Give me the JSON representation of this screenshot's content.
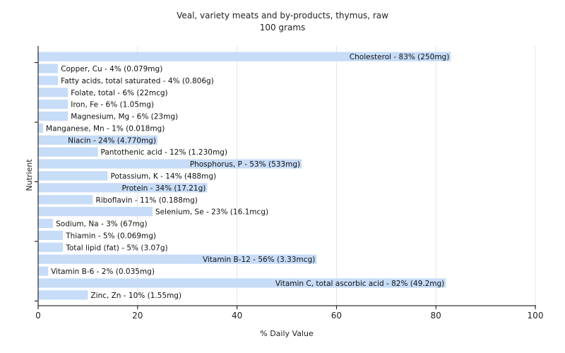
{
  "chart_data": {
    "type": "bar",
    "orientation": "horizontal",
    "title": "Veal, variety meats and by-products, thymus, raw",
    "subtitle": "100 grams",
    "xlabel": "% Daily Value",
    "ylabel": "Nutrient",
    "xlim": [
      0,
      100
    ],
    "xticks": [
      0,
      20,
      40,
      60,
      80,
      100
    ],
    "grid": true,
    "bar_color": "#c6dcf7",
    "categories": [
      "Cholesterol",
      "Copper, Cu",
      "Fatty acids, total saturated",
      "Folate, total",
      "Iron, Fe",
      "Magnesium, Mg",
      "Manganese, Mn",
      "Niacin",
      "Pantothenic acid",
      "Phosphorus, P",
      "Potassium, K",
      "Protein",
      "Riboflavin",
      "Selenium, Se",
      "Sodium, Na",
      "Thiamin",
      "Total lipid (fat)",
      "Vitamin B-12",
      "Vitamin B-6",
      "Vitamin C, total ascorbic acid",
      "Zinc, Zn"
    ],
    "values": [
      83,
      4,
      4,
      6,
      6,
      6,
      1,
      24,
      12,
      53,
      14,
      34,
      11,
      23,
      3,
      5,
      5,
      56,
      2,
      82,
      10
    ],
    "labels": [
      "Cholesterol - 83% (250mg)",
      "Copper, Cu - 4% (0.079mg)",
      "Fatty acids, total saturated - 4% (0.806g)",
      "Folate, total - 6% (22mcg)",
      "Iron, Fe - 6% (1.05mg)",
      "Magnesium, Mg - 6% (23mg)",
      "Manganese, Mn - 1% (0.018mg)",
      "Niacin - 24% (4.770mg)",
      "Pantothenic acid - 12% (1.230mg)",
      "Phosphorus, P - 53% (533mg)",
      "Potassium, K - 14% (488mg)",
      "Protein - 34% (17.21g)",
      "Riboflavin - 11% (0.188mg)",
      "Selenium, Se - 23% (16.1mcg)",
      "Sodium, Na - 3% (67mg)",
      "Thiamin - 5% (0.069mg)",
      "Total lipid (fat) - 5% (3.07g)",
      "Vitamin B-12 - 56% (3.33mcg)",
      "Vitamin B-6 - 2% (0.035mg)",
      "Vitamin C, total ascorbic acid - 82% (49.2mg)",
      "Zinc, Zn - 10% (1.55mg)"
    ]
  }
}
